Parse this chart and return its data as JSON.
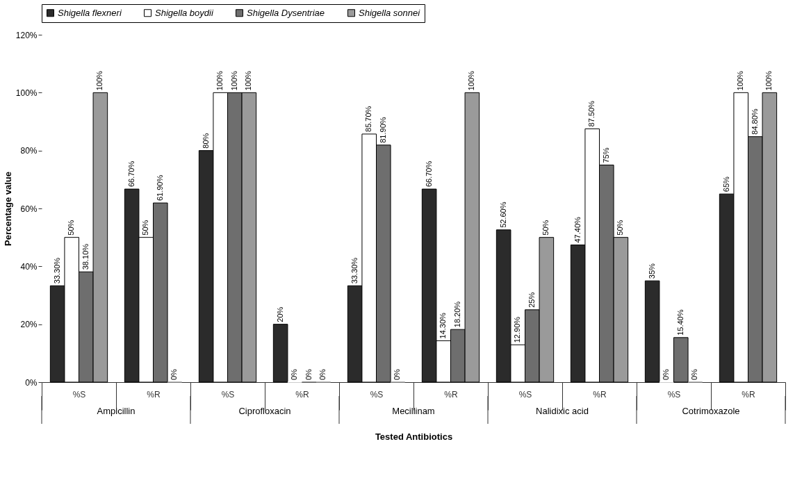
{
  "chart_data": {
    "type": "bar",
    "xlabel": "Tested Antibiotics",
    "ylabel": "Percentage value",
    "categories": [
      "%S",
      "%R",
      "%S",
      "%R",
      "%S",
      "%R",
      "%S",
      "%R",
      "%S",
      "%R"
    ],
    "annotations": [
      "Ampicillin",
      "Ciprofloxacin",
      "Mecillinam",
      "Nalidixic acid",
      "Cotrimoxazole"
    ],
    "series": [
      {
        "name": "Shigella flexneri",
        "color": "#2b2b2b",
        "values": [
          33.3,
          66.7,
          80,
          20,
          33.3,
          66.7,
          52.6,
          47.4,
          35,
          65
        ],
        "value_labels": [
          "33.30%",
          "66.70%",
          "80%",
          "20%",
          "33.30%",
          "66.70%",
          "52.60%",
          "47.40%",
          "35%",
          "65%"
        ]
      },
      {
        "name": "Shigella boydii",
        "color": "#ffffff",
        "values": [
          50,
          50,
          100,
          0,
          85.7,
          14.3,
          12.9,
          87.5,
          0,
          100
        ],
        "value_labels": [
          "50%",
          "50%",
          "100%",
          "0%",
          "85.70%",
          "14.30%",
          "12.90%",
          "87.50%",
          "0%",
          "100%"
        ]
      },
      {
        "name": "Shigella Dysentriae",
        "color": "#6e6e6e",
        "values": [
          38.1,
          61.9,
          100,
          0,
          81.9,
          18.2,
          25,
          75,
          15.4,
          84.8
        ],
        "value_labels": [
          "38.10%",
          "61.90%",
          "100%",
          "0%",
          "81.90%",
          "18.20%",
          "25%",
          "75%",
          "15.40%",
          "84.80%"
        ]
      },
      {
        "name": "Shigella sonnei",
        "color": "#9a9a9a",
        "values": [
          100,
          0,
          100,
          0,
          0,
          100,
          50,
          50,
          0,
          100
        ],
        "value_labels": [
          "100%",
          "0%",
          "100%",
          "0%",
          "0%",
          "100%",
          "50%",
          "50%",
          "0%",
          "100%"
        ]
      }
    ],
    "ylim": [
      0,
      120
    ],
    "yticks": [
      {
        "value": 0,
        "label": "0%"
      },
      {
        "value": 20,
        "label": "20%"
      },
      {
        "value": 40,
        "label": "40%"
      },
      {
        "value": 60,
        "label": "60%"
      },
      {
        "value": 80,
        "label": "80%"
      },
      {
        "value": 100,
        "label": "100%"
      },
      {
        "value": 120,
        "label": "120%"
      }
    ],
    "grid": false,
    "legend": "top"
  }
}
